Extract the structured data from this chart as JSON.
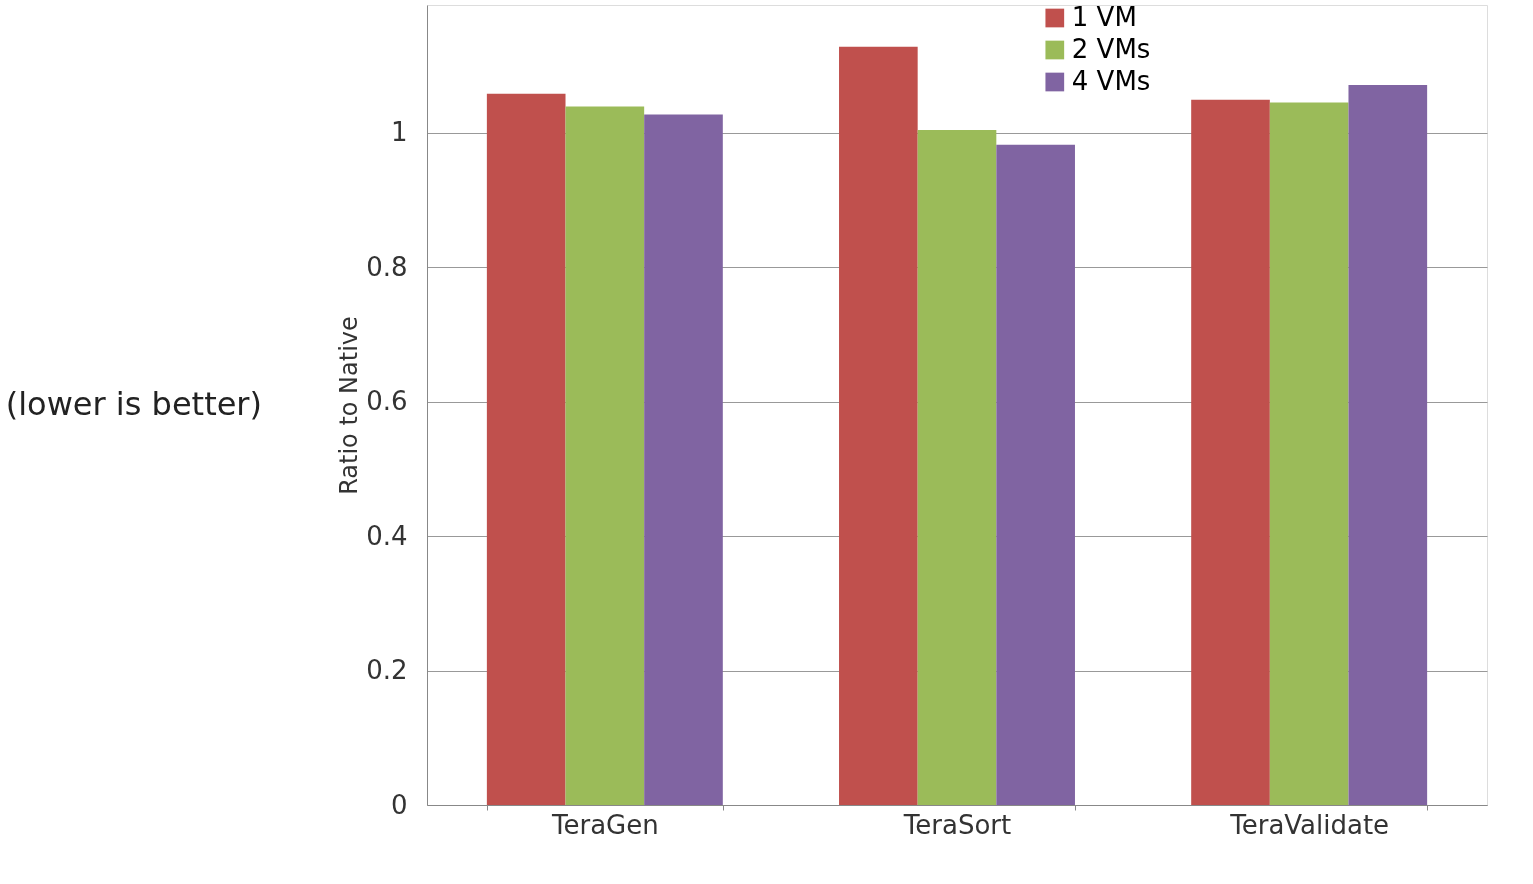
{
  "chart_data": {
    "type": "bar",
    "ylabel": "Ratio to Native",
    "annotations": [
      "(lower is better)"
    ],
    "categories": [
      "TeraGen",
      "TeraSort",
      "TeraValidate"
    ],
    "series": [
      {
        "name": "1 VM",
        "color": "#c0504d",
        "values": [
          1.058,
          1.128,
          1.049
        ]
      },
      {
        "name": "2 VMs",
        "color": "#9bbb59",
        "values": [
          1.039,
          1.004,
          1.045
        ]
      },
      {
        "name": "4 VMs",
        "color": "#8064a2",
        "values": [
          1.027,
          0.982,
          1.071
        ]
      }
    ],
    "ylim": [
      0,
      1.19
    ],
    "yticks": [
      0,
      0.2,
      0.4,
      0.6,
      0.8,
      1
    ],
    "grid": "y",
    "legend": "top"
  }
}
